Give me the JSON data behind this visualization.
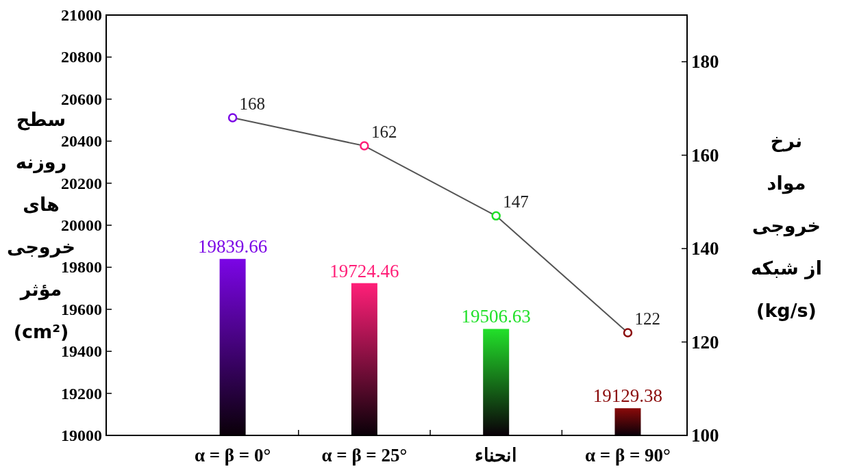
{
  "chart_data": {
    "type": "bar",
    "ylabel": "سطح\nروزنه\nهای\nخروجی\nمؤثر\n(cm²)",
    "y2label": "نرخ\nمواد\nخروجی\nاز شبکه\n(kg/s)",
    "categories": [
      "α = β = 0°",
      "α = β = 25°",
      "انحناء",
      "α = β = 90°"
    ],
    "series": [
      {
        "colors": [
          "#7b05e6",
          "#ff1f78",
          "#22e02a",
          "#8a0a0a"
        ],
        "values": [
          19839.66,
          19724.46,
          19506.63,
          19129.38
        ]
      },
      {
        "type": "line",
        "axis": "y2",
        "color": "#555555",
        "colors": [
          "#7b05e6",
          "#ff1f78",
          "#22e02a",
          "#8a0a0a"
        ],
        "values": [
          168,
          162,
          147,
          122
        ],
        "marker": "circle"
      }
    ],
    "data_labels": true,
    "ylim": [
      19000,
      21000
    ],
    "yticks": [
      19000,
      19200,
      19400,
      19600,
      19800,
      20000,
      20200,
      20400,
      20600,
      20800,
      21000
    ],
    "y2lim": [
      100,
      190
    ],
    "y2ticks": [
      100,
      120,
      140,
      160,
      180
    ],
    "grid": false
  }
}
